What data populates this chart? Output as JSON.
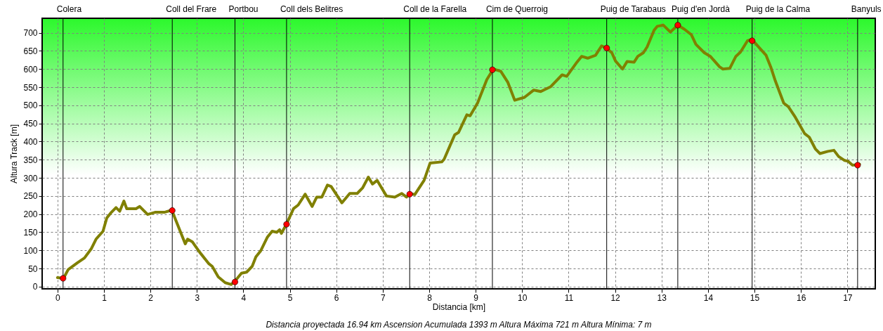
{
  "chart_data": {
    "type": "line",
    "xlabel": "Distancia [km]",
    "ylabel": "Altura Track [m]",
    "xlim": [
      -0.33,
      17.6
    ],
    "ylim": [
      -6,
      740
    ],
    "xticks": [
      0,
      1,
      2,
      3,
      4,
      5,
      6,
      7,
      8,
      9,
      10,
      11,
      12,
      13,
      14,
      15,
      16,
      17
    ],
    "yticks": [
      0,
      50,
      100,
      150,
      200,
      250,
      300,
      350,
      400,
      450,
      500,
      550,
      600,
      650,
      700
    ],
    "grid": true,
    "series": [
      {
        "type": "line",
        "color": "#808000",
        "x": [
          0,
          0.13,
          0.23,
          0.43,
          0.58,
          0.73,
          0.83,
          0.98,
          1.06,
          1.16,
          1.26,
          1.34,
          1.43,
          1.49,
          1.69,
          1.77,
          1.94,
          2.1,
          2.3,
          2.46,
          2.65,
          2.75,
          2.8,
          2.9,
          3.06,
          3.26,
          3.33,
          3.46,
          3.61,
          3.74,
          3.81,
          3.96,
          4.07,
          4.19,
          4.27,
          4.37,
          4.52,
          4.62,
          4.72,
          4.78,
          4.82,
          4.93,
          5.08,
          5.18,
          5.33,
          5.48,
          5.58,
          5.69,
          5.81,
          5.89,
          6.12,
          6.29,
          6.45,
          6.57,
          6.69,
          6.78,
          6.88,
          7.08,
          7.26,
          7.41,
          7.51,
          7.59,
          7.69,
          7.89,
          8.02,
          8.27,
          8.32,
          8.55,
          8.63,
          8.81,
          8.88,
          9.04,
          9.24,
          9.38,
          9.54,
          9.69,
          9.84,
          10.05,
          10.25,
          10.4,
          10.61,
          10.86,
          10.96,
          11.18,
          11.28,
          11.41,
          11.58,
          11.71,
          11.8,
          11.93,
          12.01,
          12.16,
          12.26,
          12.41,
          12.49,
          12.61,
          12.69,
          12.84,
          12.91,
          13.04,
          13.19,
          13.35,
          13.49,
          13.64,
          13.74,
          13.92,
          14.05,
          14.25,
          14.32,
          14.47,
          14.6,
          14.7,
          14.85,
          14.92,
          15.0,
          15.13,
          15.25,
          15.35,
          15.45,
          15.63,
          15.73,
          15.88,
          16.08,
          16.18,
          16.31,
          16.41,
          16.58,
          16.71,
          16.81,
          16.94,
          17.01,
          17.11,
          17.2,
          17.26
        ],
        "values": [
          25,
          23,
          47,
          66,
          79,
          105,
          131,
          153,
          189,
          205,
          218,
          208,
          236,
          215,
          215,
          221,
          199,
          205,
          205,
          211,
          150,
          118,
          131,
          124,
          95,
          63,
          56,
          27,
          11,
          6,
          14,
          37,
          40,
          56,
          82,
          98,
          137,
          153,
          150,
          157,
          147,
          173,
          215,
          225,
          255,
          221,
          247,
          247,
          280,
          276,
          231,
          257,
          257,
          273,
          302,
          283,
          293,
          250,
          247,
          257,
          247,
          256,
          254,
          293,
          341,
          344,
          351,
          419,
          425,
          474,
          471,
          506,
          571,
          600,
          594,
          564,
          514,
          522,
          542,
          538,
          551,
          584,
          580,
          619,
          635,
          630,
          638,
          664,
          659,
          645,
          622,
          600,
          621,
          619,
          635,
          645,
          661,
          707,
          718,
          721,
          702,
          721,
          710,
          695,
          668,
          645,
          635,
          606,
          600,
          602,
          635,
          647,
          678,
          681,
          674,
          655,
          638,
          606,
          567,
          506,
          496,
          467,
          422,
          412,
          380,
          367,
          373,
          376,
          359,
          348,
          346,
          335,
          336,
          338
        ]
      },
      {
        "type": "scatter",
        "color": "#ff0000",
        "marker": "circle",
        "x": [
          0.12,
          2.47,
          3.82,
          4.93,
          7.58,
          9.36,
          11.82,
          13.35,
          14.95,
          17.22
        ],
        "values": [
          23,
          210,
          13,
          172,
          255,
          598,
          658,
          721,
          678,
          335
        ]
      }
    ],
    "ref_lines": [
      {
        "axis": "x",
        "value": 0.12,
        "label": "Colera",
        "color": "#000000"
      },
      {
        "axis": "x",
        "value": 2.47,
        "label": "Coll del Frare",
        "color": "#000000"
      },
      {
        "axis": "x",
        "value": 3.82,
        "label": "Portbou",
        "color": "#000000"
      },
      {
        "axis": "x",
        "value": 4.93,
        "label": "Coll dels Belitres",
        "color": "#000000"
      },
      {
        "axis": "x",
        "value": 7.58,
        "label": "Coll de la Farella",
        "color": "#000000"
      },
      {
        "axis": "x",
        "value": 9.36,
        "label": "Cim de Querroig",
        "color": "#000000"
      },
      {
        "axis": "x",
        "value": 11.82,
        "label": "Puig de Tarabaus",
        "color": "#000000"
      },
      {
        "axis": "x",
        "value": 13.35,
        "label": "Puig d'en Jordà",
        "color": "#000000"
      },
      {
        "axis": "x",
        "value": 14.95,
        "label": "Puig de la Calma",
        "color": "#000000"
      },
      {
        "axis": "x",
        "value": 17.22,
        "label": "Banyuls",
        "color": "#000000"
      }
    ],
    "annotations": [
      "Distancia proyectada 16.94 km   Ascension Acumulada 1393 m   Altura Máxima 721 m   Altura Mínima: 7 m"
    ]
  }
}
